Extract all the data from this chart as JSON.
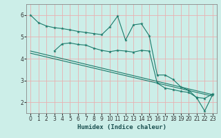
{
  "xlabel": "Humidex (Indice chaleur)",
  "bg_color": "#cceee8",
  "line_color": "#1a7a6a",
  "grid_color": "#e8b0b0",
  "xlim": [
    -0.5,
    23.5
  ],
  "ylim": [
    1.5,
    6.5
  ],
  "xticks": [
    0,
    1,
    2,
    3,
    4,
    5,
    6,
    7,
    8,
    9,
    10,
    11,
    12,
    13,
    14,
    15,
    16,
    17,
    18,
    19,
    20,
    21,
    22,
    23
  ],
  "yticks": [
    2,
    3,
    4,
    5,
    6
  ],
  "line1_x": [
    0,
    1,
    2,
    3,
    4,
    5,
    6,
    7,
    8,
    9,
    10,
    11,
    12,
    13,
    14,
    15,
    16,
    17,
    18,
    19,
    20,
    21,
    22,
    23
  ],
  "line1_y": [
    6.0,
    5.65,
    5.5,
    5.42,
    5.38,
    5.32,
    5.25,
    5.2,
    5.15,
    5.1,
    5.45,
    5.95,
    4.85,
    5.55,
    5.6,
    5.05,
    3.25,
    3.25,
    3.05,
    2.7,
    2.55,
    2.2,
    1.6,
    2.35
  ],
  "line2_x": [
    3,
    4,
    5,
    6,
    7,
    8,
    9,
    10,
    11,
    12,
    13,
    14,
    15,
    16,
    17,
    18,
    19,
    20,
    21,
    22,
    23
  ],
  "line2_y": [
    4.35,
    4.68,
    4.72,
    4.65,
    4.62,
    4.48,
    4.38,
    4.32,
    4.38,
    4.35,
    4.3,
    4.38,
    4.35,
    2.88,
    2.65,
    2.58,
    2.5,
    2.45,
    2.22,
    2.18,
    2.38
  ],
  "line3_x": [
    0,
    23
  ],
  "line3_y": [
    4.35,
    2.35
  ],
  "line4_x": [
    0,
    23
  ],
  "line4_y": [
    4.25,
    2.28
  ]
}
